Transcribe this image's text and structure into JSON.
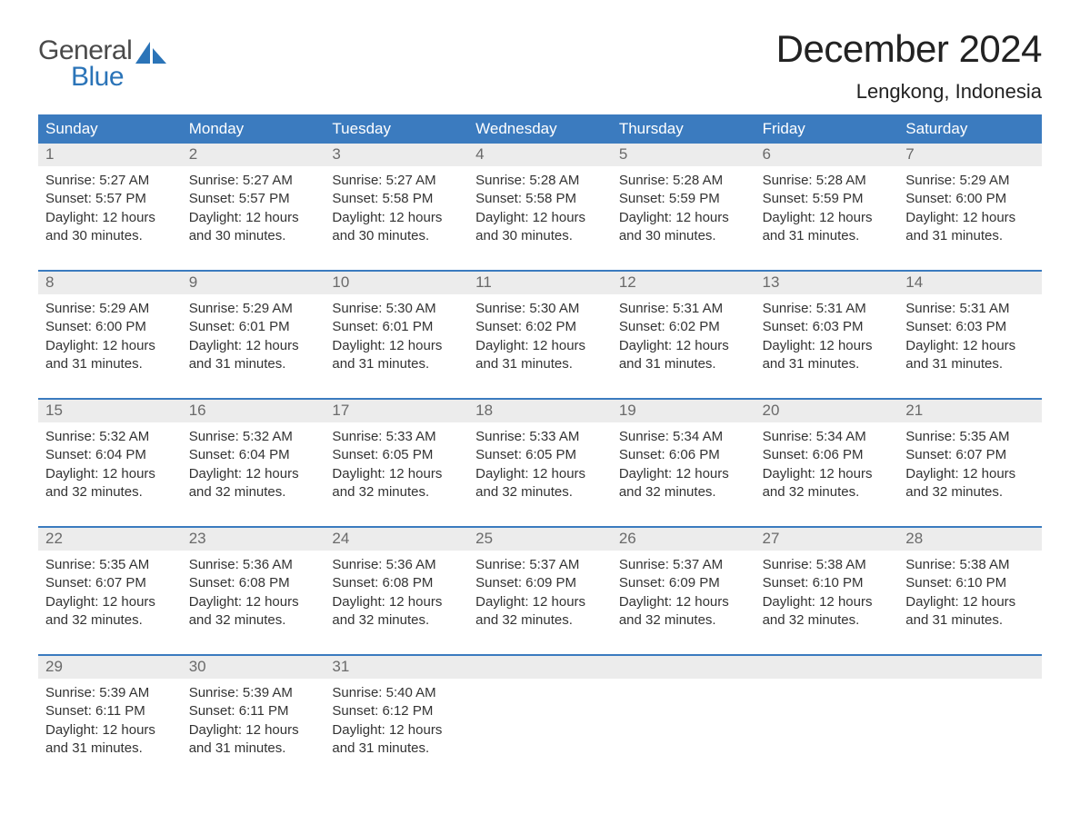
{
  "brand": {
    "word1": "General",
    "word2": "Blue"
  },
  "title": "December 2024",
  "location": "Lengkong, Indonesia",
  "colors": {
    "header_bg": "#3b7bbf",
    "header_text": "#ffffff",
    "daynum_bg": "#ececec",
    "daynum_text": "#6a6a6a",
    "body_text": "#333333",
    "rule": "#3b7bbf",
    "brand_blue": "#2b74b8",
    "background": "#ffffff"
  },
  "layout": {
    "columns": 7,
    "weeks": 5,
    "title_fontsize": 42,
    "location_fontsize": 22,
    "weekday_fontsize": 17,
    "daynum_fontsize": 17,
    "cell_fontsize": 15
  },
  "weekdays": [
    "Sunday",
    "Monday",
    "Tuesday",
    "Wednesday",
    "Thursday",
    "Friday",
    "Saturday"
  ],
  "labels": {
    "sunrise": "Sunrise:",
    "sunset": "Sunset:",
    "daylight": "Daylight:"
  },
  "weeks": [
    [
      {
        "n": "1",
        "sunrise": "5:27 AM",
        "sunset": "5:57 PM",
        "daylight": "12 hours and 30 minutes."
      },
      {
        "n": "2",
        "sunrise": "5:27 AM",
        "sunset": "5:57 PM",
        "daylight": "12 hours and 30 minutes."
      },
      {
        "n": "3",
        "sunrise": "5:27 AM",
        "sunset": "5:58 PM",
        "daylight": "12 hours and 30 minutes."
      },
      {
        "n": "4",
        "sunrise": "5:28 AM",
        "sunset": "5:58 PM",
        "daylight": "12 hours and 30 minutes."
      },
      {
        "n": "5",
        "sunrise": "5:28 AM",
        "sunset": "5:59 PM",
        "daylight": "12 hours and 30 minutes."
      },
      {
        "n": "6",
        "sunrise": "5:28 AM",
        "sunset": "5:59 PM",
        "daylight": "12 hours and 31 minutes."
      },
      {
        "n": "7",
        "sunrise": "5:29 AM",
        "sunset": "6:00 PM",
        "daylight": "12 hours and 31 minutes."
      }
    ],
    [
      {
        "n": "8",
        "sunrise": "5:29 AM",
        "sunset": "6:00 PM",
        "daylight": "12 hours and 31 minutes."
      },
      {
        "n": "9",
        "sunrise": "5:29 AM",
        "sunset": "6:01 PM",
        "daylight": "12 hours and 31 minutes."
      },
      {
        "n": "10",
        "sunrise": "5:30 AM",
        "sunset": "6:01 PM",
        "daylight": "12 hours and 31 minutes."
      },
      {
        "n": "11",
        "sunrise": "5:30 AM",
        "sunset": "6:02 PM",
        "daylight": "12 hours and 31 minutes."
      },
      {
        "n": "12",
        "sunrise": "5:31 AM",
        "sunset": "6:02 PM",
        "daylight": "12 hours and 31 minutes."
      },
      {
        "n": "13",
        "sunrise": "5:31 AM",
        "sunset": "6:03 PM",
        "daylight": "12 hours and 31 minutes."
      },
      {
        "n": "14",
        "sunrise": "5:31 AM",
        "sunset": "6:03 PM",
        "daylight": "12 hours and 31 minutes."
      }
    ],
    [
      {
        "n": "15",
        "sunrise": "5:32 AM",
        "sunset": "6:04 PM",
        "daylight": "12 hours and 32 minutes."
      },
      {
        "n": "16",
        "sunrise": "5:32 AM",
        "sunset": "6:04 PM",
        "daylight": "12 hours and 32 minutes."
      },
      {
        "n": "17",
        "sunrise": "5:33 AM",
        "sunset": "6:05 PM",
        "daylight": "12 hours and 32 minutes."
      },
      {
        "n": "18",
        "sunrise": "5:33 AM",
        "sunset": "6:05 PM",
        "daylight": "12 hours and 32 minutes."
      },
      {
        "n": "19",
        "sunrise": "5:34 AM",
        "sunset": "6:06 PM",
        "daylight": "12 hours and 32 minutes."
      },
      {
        "n": "20",
        "sunrise": "5:34 AM",
        "sunset": "6:06 PM",
        "daylight": "12 hours and 32 minutes."
      },
      {
        "n": "21",
        "sunrise": "5:35 AM",
        "sunset": "6:07 PM",
        "daylight": "12 hours and 32 minutes."
      }
    ],
    [
      {
        "n": "22",
        "sunrise": "5:35 AM",
        "sunset": "6:07 PM",
        "daylight": "12 hours and 32 minutes."
      },
      {
        "n": "23",
        "sunrise": "5:36 AM",
        "sunset": "6:08 PM",
        "daylight": "12 hours and 32 minutes."
      },
      {
        "n": "24",
        "sunrise": "5:36 AM",
        "sunset": "6:08 PM",
        "daylight": "12 hours and 32 minutes."
      },
      {
        "n": "25",
        "sunrise": "5:37 AM",
        "sunset": "6:09 PM",
        "daylight": "12 hours and 32 minutes."
      },
      {
        "n": "26",
        "sunrise": "5:37 AM",
        "sunset": "6:09 PM",
        "daylight": "12 hours and 32 minutes."
      },
      {
        "n": "27",
        "sunrise": "5:38 AM",
        "sunset": "6:10 PM",
        "daylight": "12 hours and 32 minutes."
      },
      {
        "n": "28",
        "sunrise": "5:38 AM",
        "sunset": "6:10 PM",
        "daylight": "12 hours and 31 minutes."
      }
    ],
    [
      {
        "n": "29",
        "sunrise": "5:39 AM",
        "sunset": "6:11 PM",
        "daylight": "12 hours and 31 minutes."
      },
      {
        "n": "30",
        "sunrise": "5:39 AM",
        "sunset": "6:11 PM",
        "daylight": "12 hours and 31 minutes."
      },
      {
        "n": "31",
        "sunrise": "5:40 AM",
        "sunset": "6:12 PM",
        "daylight": "12 hours and 31 minutes."
      },
      null,
      null,
      null,
      null
    ]
  ]
}
